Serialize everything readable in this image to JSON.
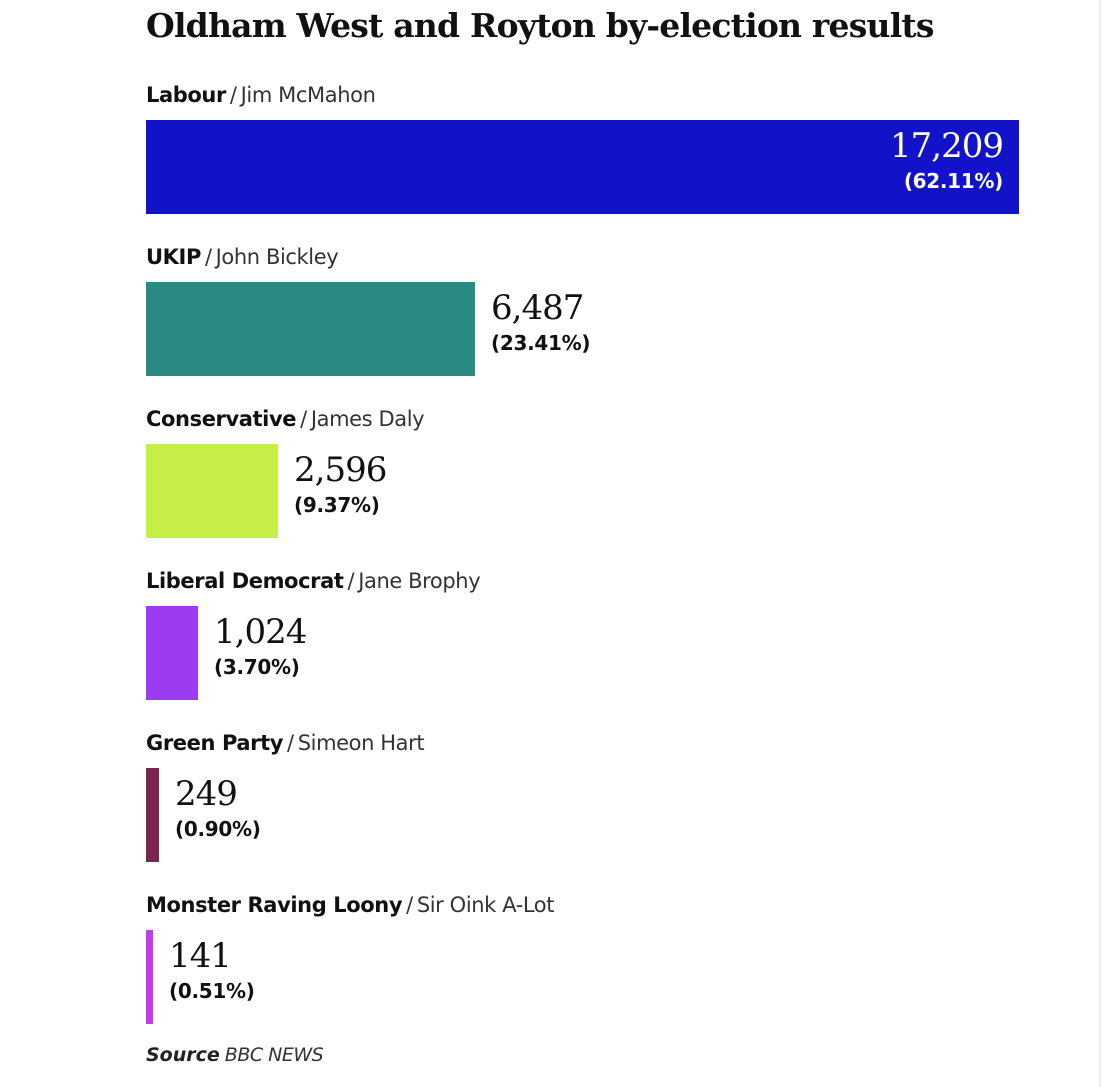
{
  "chart_data": {
    "type": "bar",
    "orientation": "horizontal",
    "title": "Oldham West and Royton by-election results",
    "source_label": "Source",
    "source_name": "BBC NEWS",
    "max_value": 17209,
    "parties": [
      {
        "party": "Labour",
        "candidate": "Jim McMahon",
        "votes": 17209,
        "votes_label": "17,209",
        "percent_label": "(62.11%)",
        "color": "#1212c8"
      },
      {
        "party": "UKIP",
        "candidate": "John Bickley",
        "votes": 6487,
        "votes_label": "6,487",
        "percent_label": "(23.41%)",
        "color": "#2a8a82"
      },
      {
        "party": "Conservative",
        "candidate": "James Daly",
        "votes": 2596,
        "votes_label": "2,596",
        "percent_label": "(9.37%)",
        "color": "#c5ef46"
      },
      {
        "party": "Liberal Democrat",
        "candidate": "Jane Brophy",
        "votes": 1024,
        "votes_label": "1,024",
        "percent_label": "(3.70%)",
        "color": "#9b3cf2"
      },
      {
        "party": "Green Party",
        "candidate": "Simeon Hart",
        "votes": 249,
        "votes_label": "249",
        "percent_label": "(0.90%)",
        "color": "#7a2450"
      },
      {
        "party": "Monster Raving Loony",
        "candidate": "Sir Oink A-Lot",
        "votes": 141,
        "votes_label": "141",
        "percent_label": "(0.51%)",
        "color": "#c43cf0"
      }
    ]
  }
}
